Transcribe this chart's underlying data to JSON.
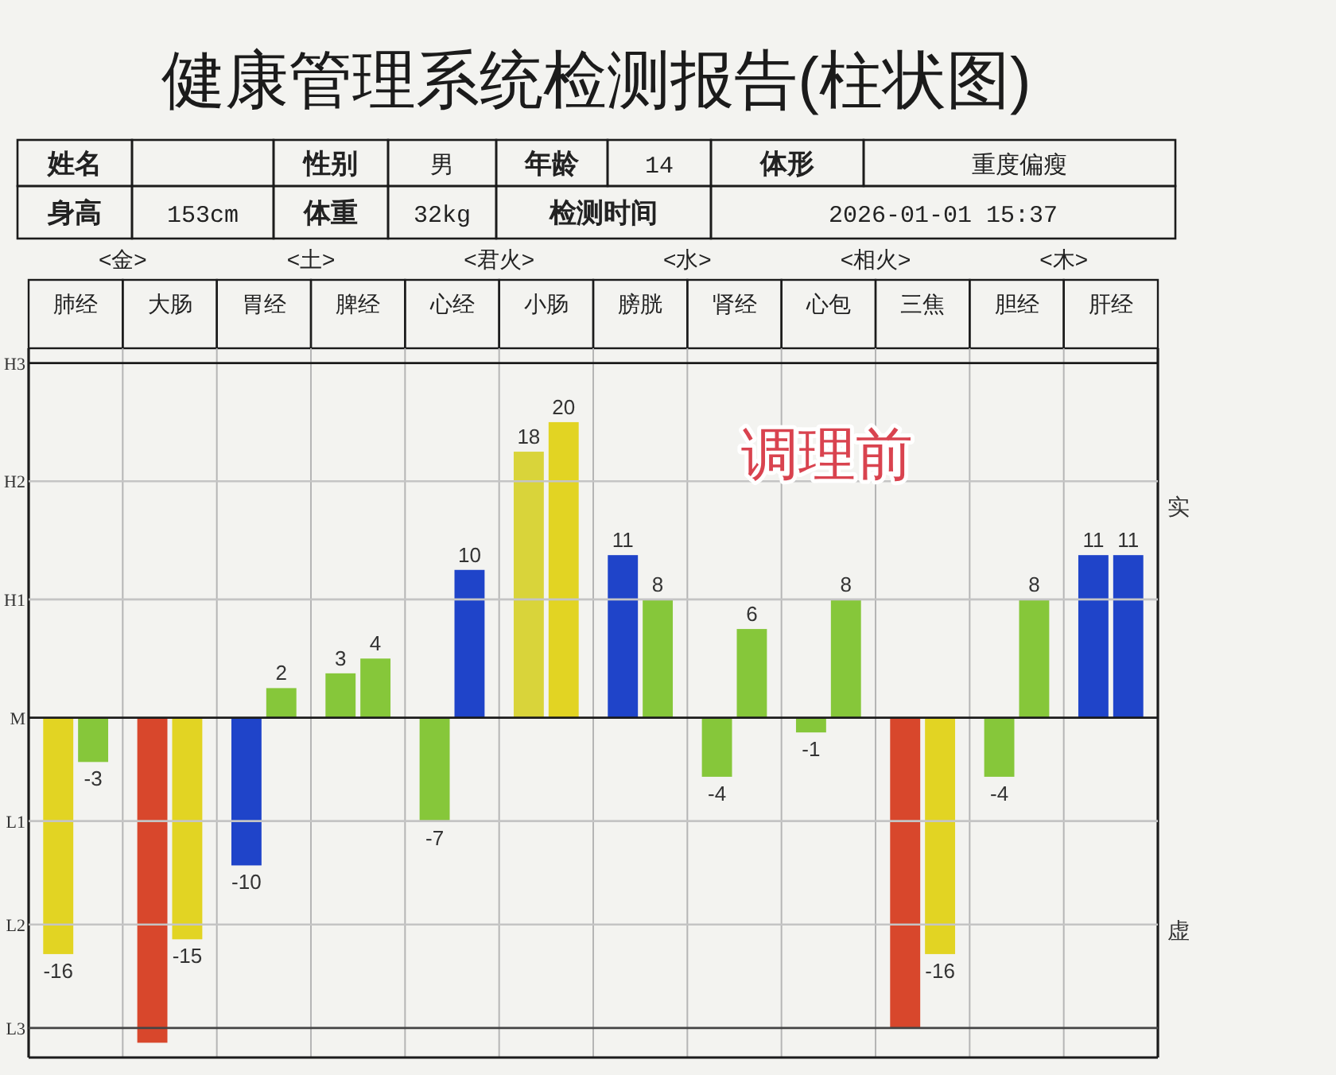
{
  "chart_data": {
    "type": "bar",
    "title": "健康管理系统检测报告(柱状图)",
    "categories": [
      "肺经",
      "大肠",
      "胃经",
      "脾经",
      "心经",
      "小肠",
      "膀胱",
      "肾经",
      "心包",
      "三焦",
      "胆经",
      "肝经"
    ],
    "series": [
      {
        "values": [
          -16,
          -22,
          -10,
          3,
          -7,
          18,
          11,
          -4,
          -1,
          -21,
          -4,
          11
        ],
        "colors": [
          "#e2d423",
          "#d8472c",
          "#1f44c9",
          "#86c73a",
          "#86c73a",
          "#d9d43a",
          "#1f44c9",
          "#86c73a",
          "#86c73a",
          "#d8472c",
          "#86c73a",
          "#1f44c9"
        ],
        "value_labels": [
          "-16",
          null,
          "-10",
          "3",
          "-7",
          "18",
          "11",
          "-4",
          "-1",
          null,
          "-4",
          "11"
        ]
      },
      {
        "values": [
          -3,
          -15,
          2,
          4,
          10,
          20,
          8,
          6,
          8,
          -16,
          8,
          11
        ],
        "colors": [
          "#86c73a",
          "#e2d423",
          "#86c73a",
          "#86c73a",
          "#1f44c9",
          "#e2d423",
          "#86c73a",
          "#86c73a",
          "#86c73a",
          "#e2d423",
          "#86c73a",
          "#1f44c9"
        ],
        "value_labels": [
          "-3",
          "-15",
          "2",
          "4",
          "10",
          "20",
          "8",
          "6",
          "8",
          "-16",
          "8",
          "11"
        ]
      }
    ],
    "ylim": [
      -23,
      25
    ],
    "ref_lines": [
      {
        "axis": "y",
        "value": 24,
        "label": "H3",
        "color": "#1b1b1b"
      },
      {
        "axis": "y",
        "value": 16,
        "label": "H2",
        "color": "#c4c4c4"
      },
      {
        "axis": "y",
        "value": 8,
        "label": "H1",
        "color": "#c4c4c4"
      },
      {
        "axis": "y",
        "value": 0,
        "label": "M",
        "color": "#1b1b1b"
      },
      {
        "axis": "y",
        "value": -7,
        "label": "L1",
        "color": "#c4c4c4"
      },
      {
        "axis": "y",
        "value": -14,
        "label": "L2",
        "color": "#c4c4c4"
      },
      {
        "axis": "y",
        "value": -21,
        "label": "L3",
        "color": "#444444"
      }
    ],
    "grid": "x",
    "annotations": [
      "姓名",
      "性别",
      "男",
      "年龄",
      "14",
      "体形",
      "重度偏瘦",
      "身高",
      "153cm",
      "体重",
      "32kg",
      "检测时间",
      "2026-01-01 15:37",
      "<金>",
      "<土>",
      "<君火>",
      "<水>",
      "<相火>",
      "<木>",
      "调理前",
      "实",
      "虚"
    ]
  }
}
